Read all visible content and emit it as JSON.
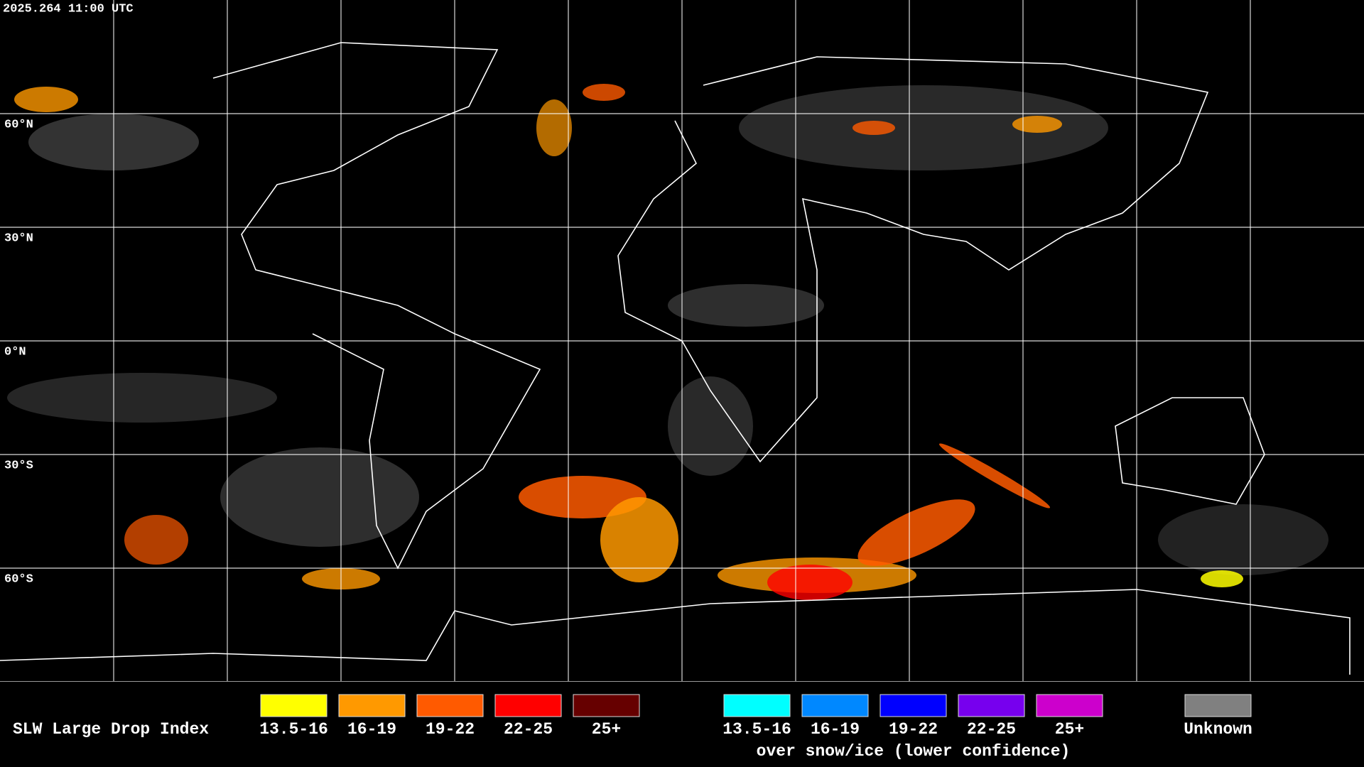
{
  "timestamp": "2025.264 11:00 UTC",
  "latitude_labels": [
    "60°N",
    "30°N",
    "0°N",
    "30°S",
    "60°S"
  ],
  "legend": {
    "title": "SLW Large Drop Index",
    "groups": [
      {
        "items": [
          {
            "label": "13.5-16",
            "color": "#ffff00"
          },
          {
            "label": "16-19",
            "color": "#ff9900"
          },
          {
            "label": "19-22",
            "color": "#ff5a00"
          },
          {
            "label": "22-25",
            "color": "#ff0000"
          },
          {
            "label": "25+",
            "color": "#660000"
          }
        ]
      },
      {
        "items": [
          {
            "label": "13.5-16",
            "color": "#00ffff"
          },
          {
            "label": "16-19",
            "color": "#0088ff"
          },
          {
            "label": "19-22",
            "color": "#0000ff"
          },
          {
            "label": "22-25",
            "color": "#7700ee"
          },
          {
            "label": "25+",
            "color": "#cc00cc"
          }
        ],
        "note": "over snow/ice (lower confidence)"
      },
      {
        "items": [
          {
            "label": "Unknown",
            "color": "#808080"
          }
        ]
      }
    ]
  }
}
